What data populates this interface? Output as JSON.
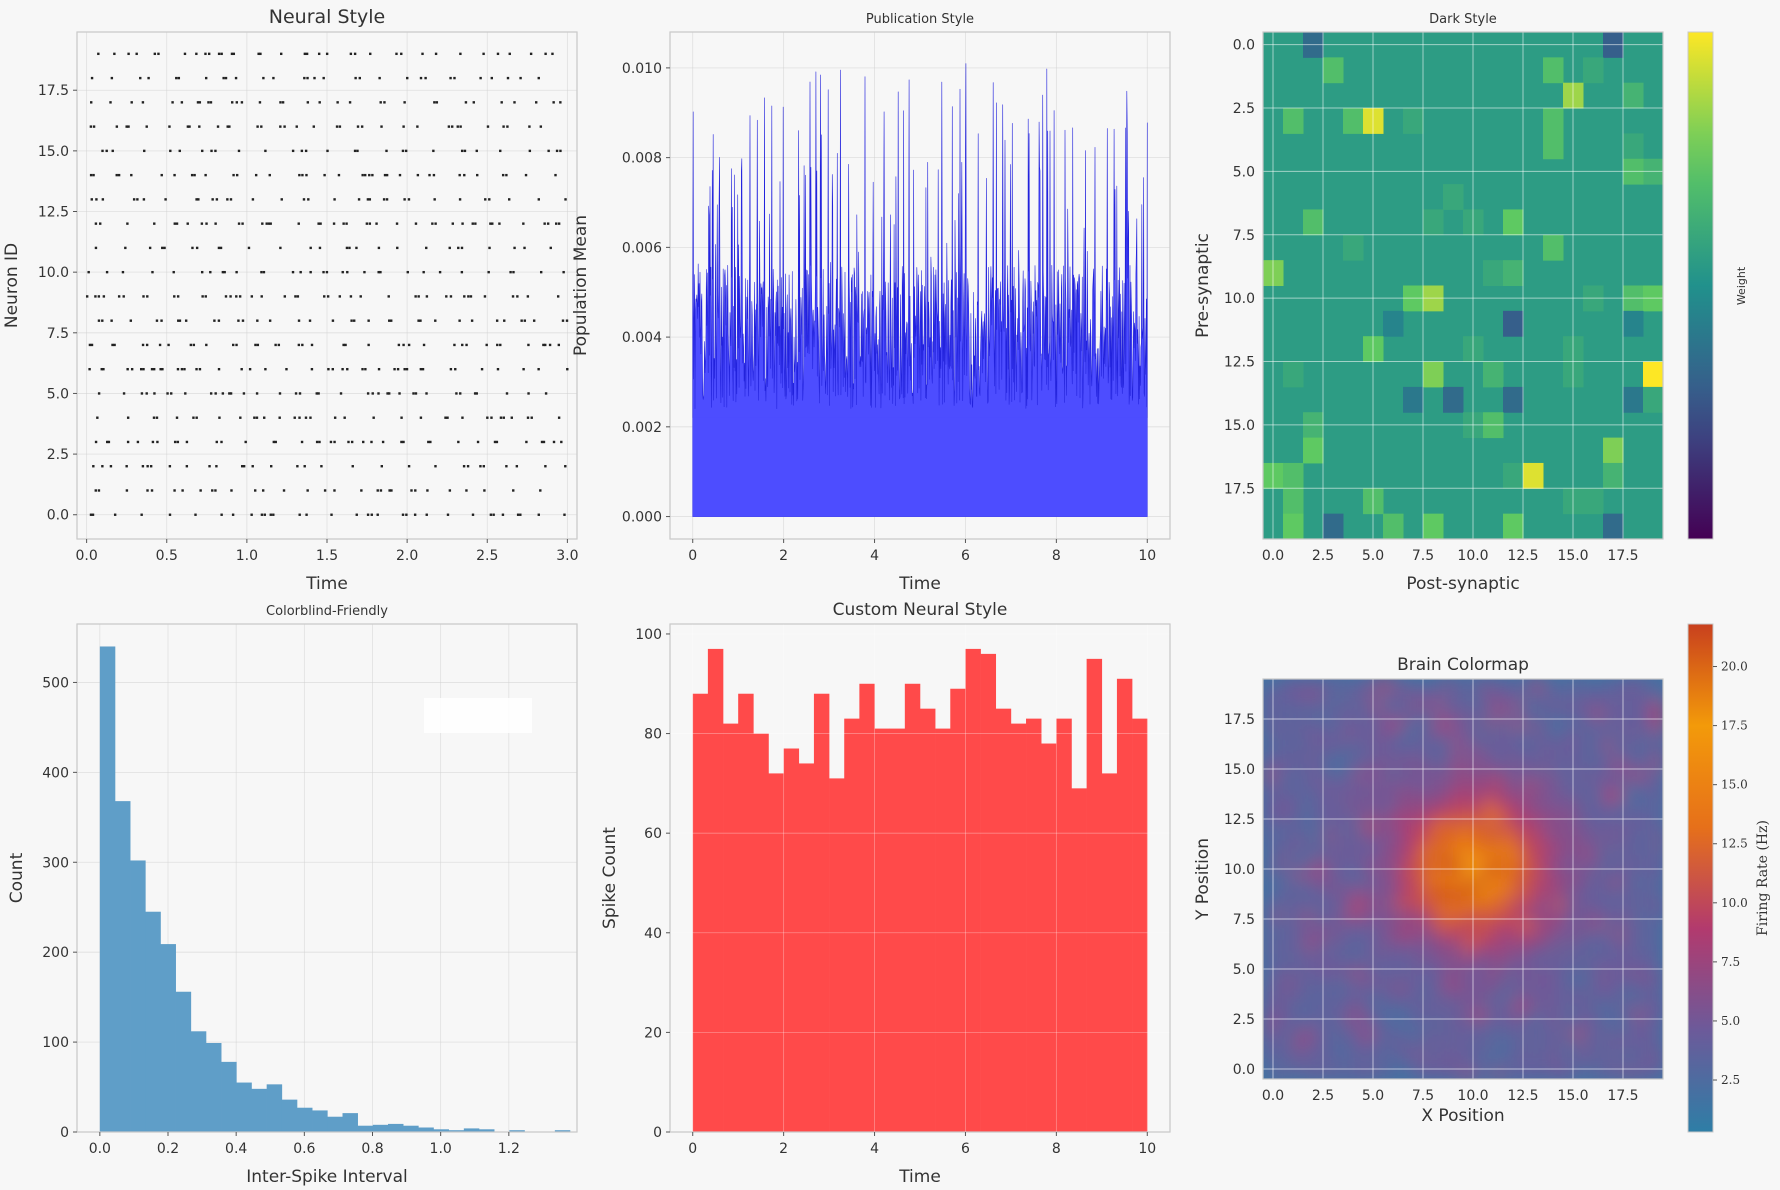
{
  "chart_data": [
    {
      "id": "raster",
      "type": "scatter",
      "title": "Neural Style",
      "xlabel": "Time",
      "ylabel": "Neuron ID",
      "xlim": [
        -0.06,
        3.06
      ],
      "ylim": [
        -1.0,
        19.9
      ],
      "xticks": [
        0.0,
        0.5,
        1.0,
        1.5,
        2.0,
        2.5,
        3.0
      ],
      "xticklabels": [
        "0.0",
        "0.5",
        "1.0",
        "1.5",
        "2.0",
        "2.5",
        "3.0"
      ],
      "yticks": [
        0.0,
        2.5,
        5.0,
        7.5,
        10.0,
        12.5,
        15.0,
        17.5
      ],
      "yticklabels": [
        "0.0",
        "2.5",
        "5.0",
        "7.5",
        "10.0",
        "12.5",
        "15.0",
        "17.5"
      ],
      "neurons": 20,
      "spike_count_approx": 600,
      "grid": true,
      "color": "#222222"
    },
    {
      "id": "population",
      "type": "area",
      "title": "Publication Style",
      "xlabel": "Time",
      "ylabel": "Population Mean",
      "xlim": [
        -0.5,
        10.5
      ],
      "ylim": [
        -0.0005,
        0.0108
      ],
      "xticks": [
        0,
        2,
        4,
        6,
        8,
        10
      ],
      "xticklabels": [
        "0",
        "2",
        "4",
        "6",
        "8",
        "10"
      ],
      "yticks": [
        0.0,
        0.002,
        0.004,
        0.006,
        0.008,
        0.01
      ],
      "yticklabels": [
        "0.000",
        "0.002",
        "0.004",
        "0.006",
        "0.008",
        "0.010"
      ],
      "baseline_mean": 0.004,
      "peak_max": 0.0103,
      "grid": true,
      "color": "#3a3af0"
    },
    {
      "id": "connectivity",
      "type": "heatmap",
      "title": "Dark Style",
      "xlabel": "Post-synaptic",
      "ylabel": "Pre-synaptic",
      "xticks": [
        0,
        2.5,
        5,
        7.5,
        10,
        12.5,
        15,
        17.5
      ],
      "xticklabels": [
        "0.0",
        "2.5",
        "5.0",
        "7.5",
        "10.0",
        "12.5",
        "15.0",
        "17.5"
      ],
      "yticks": [
        0,
        2.5,
        5,
        7.5,
        10,
        12.5,
        15,
        17.5
      ],
      "yticklabels": [
        "0.0",
        "2.5",
        "5.0",
        "7.5",
        "10.0",
        "12.5",
        "15.0",
        "17.5"
      ],
      "colormap": "viridis",
      "background_value": 0.55,
      "colorbar_label": "Weight",
      "cells": [
        [
          0,
          2,
          0.35
        ],
        [
          0,
          17,
          0.3
        ],
        [
          1,
          3,
          0.7
        ],
        [
          1,
          14,
          0.7
        ],
        [
          1,
          16,
          0.6
        ],
        [
          2,
          15,
          0.85
        ],
        [
          2,
          18,
          0.65
        ],
        [
          3,
          1,
          0.7
        ],
        [
          3,
          4,
          0.7
        ],
        [
          3,
          5,
          0.95
        ],
        [
          3,
          7,
          0.6
        ],
        [
          3,
          14,
          0.7
        ],
        [
          4,
          14,
          0.7
        ],
        [
          4,
          18,
          0.6
        ],
        [
          5,
          19,
          0.65
        ],
        [
          5,
          18,
          0.7
        ],
        [
          6,
          9,
          0.6
        ],
        [
          7,
          2,
          0.7
        ],
        [
          7,
          8,
          0.6
        ],
        [
          7,
          10,
          0.6
        ],
        [
          7,
          12,
          0.75
        ],
        [
          8,
          14,
          0.7
        ],
        [
          8,
          4,
          0.6
        ],
        [
          9,
          0,
          0.8
        ],
        [
          9,
          11,
          0.6
        ],
        [
          9,
          12,
          0.65
        ],
        [
          10,
          7,
          0.75
        ],
        [
          10,
          8,
          0.85
        ],
        [
          10,
          16,
          0.6
        ],
        [
          10,
          18,
          0.7
        ],
        [
          10,
          19,
          0.75
        ],
        [
          11,
          6,
          0.45
        ],
        [
          11,
          12,
          0.3
        ],
        [
          11,
          18,
          0.45
        ],
        [
          12,
          5,
          0.75
        ],
        [
          12,
          10,
          0.6
        ],
        [
          12,
          15,
          0.6
        ],
        [
          13,
          1,
          0.6
        ],
        [
          13,
          8,
          0.8
        ],
        [
          13,
          11,
          0.65
        ],
        [
          13,
          15,
          0.6
        ],
        [
          13,
          19,
          1.0
        ],
        [
          14,
          7,
          0.4
        ],
        [
          14,
          9,
          0.35
        ],
        [
          14,
          12,
          0.35
        ],
        [
          14,
          18,
          0.4
        ],
        [
          14,
          19,
          0.6
        ],
        [
          15,
          2,
          0.65
        ],
        [
          15,
          10,
          0.6
        ],
        [
          15,
          11,
          0.7
        ],
        [
          16,
          2,
          0.75
        ],
        [
          16,
          17,
          0.8
        ],
        [
          17,
          0,
          0.75
        ],
        [
          17,
          1,
          0.7
        ],
        [
          17,
          12,
          0.6
        ],
        [
          17,
          13,
          0.95
        ],
        [
          17,
          17,
          0.65
        ],
        [
          18,
          1,
          0.7
        ],
        [
          18,
          5,
          0.7
        ],
        [
          18,
          15,
          0.6
        ],
        [
          18,
          16,
          0.6
        ],
        [
          19,
          1,
          0.75
        ],
        [
          19,
          6,
          0.7
        ],
        [
          19,
          8,
          0.75
        ],
        [
          19,
          12,
          0.75
        ],
        [
          19,
          3,
          0.35
        ],
        [
          19,
          17,
          0.35
        ]
      ]
    },
    {
      "id": "isi",
      "type": "bar",
      "title": "Colorblind-Friendly",
      "xlabel": "Inter-Spike Interval",
      "ylabel": "Count",
      "xlim": [
        -0.067,
        1.4
      ],
      "ylim": [
        0,
        565
      ],
      "xticks": [
        0.0,
        0.2,
        0.4,
        0.6,
        0.8,
        1.0,
        1.2
      ],
      "xticklabels": [
        "0.0",
        "0.2",
        "0.4",
        "0.6",
        "0.8",
        "1.0",
        "1.2"
      ],
      "yticks": [
        0,
        100,
        200,
        300,
        400,
        500
      ],
      "yticklabels": [
        "0",
        "100",
        "200",
        "300",
        "400",
        "500"
      ],
      "bin_width": 0.0445,
      "bin_start": 0.0,
      "values": [
        540,
        368,
        302,
        245,
        209,
        156,
        112,
        99,
        78,
        55,
        48,
        53,
        36,
        27,
        24,
        17,
        21,
        7,
        8,
        9,
        7,
        5,
        3,
        2,
        4,
        3,
        0,
        2,
        0,
        0,
        2
      ],
      "grid": true,
      "color": "#5f9ec8"
    },
    {
      "id": "spike_counts",
      "type": "bar",
      "title": "Custom Neural Style",
      "xlabel": "Time",
      "ylabel": "Spike Count",
      "xlim": [
        -0.5,
        10.5
      ],
      "ylim": [
        0,
        102
      ],
      "xticks": [
        0,
        2,
        4,
        6,
        8,
        10
      ],
      "xticklabels": [
        "0",
        "2",
        "4",
        "6",
        "8",
        "10"
      ],
      "yticks": [
        0,
        20,
        40,
        60,
        80,
        100
      ],
      "yticklabels": [
        "0",
        "20",
        "40",
        "60",
        "80",
        "100"
      ],
      "bin_width": 0.3333,
      "values": [
        88,
        97,
        82,
        88,
        80,
        72,
        77,
        74,
        88,
        71,
        83,
        90,
        81,
        81,
        90,
        85,
        81,
        89,
        97,
        96,
        85,
        82,
        83,
        78,
        83,
        69,
        95,
        72,
        91,
        83
      ],
      "grid": true,
      "color": "#ff4a4a"
    },
    {
      "id": "brain_map",
      "type": "heatmap",
      "title": "Brain Colormap",
      "xlabel": "X Position",
      "ylabel": "Y Position",
      "xticks": [
        0,
        2.5,
        5,
        7.5,
        10,
        12.5,
        15,
        17.5
      ],
      "xticklabels": [
        "0.0",
        "2.5",
        "5.0",
        "7.5",
        "10.0",
        "12.5",
        "15.0",
        "17.5"
      ],
      "yticks": [
        0,
        2.5,
        5,
        7.5,
        10,
        12.5,
        15,
        17.5
      ],
      "yticklabels": [
        "0.0",
        "2.5",
        "5.0",
        "7.5",
        "10.0",
        "12.5",
        "15.0",
        "17.5"
      ],
      "colorbar_label": "Firing Rate (Hz)",
      "colorbar_ticks": [
        2.5,
        5.0,
        7.5,
        10.0,
        12.5,
        15.0,
        17.5,
        20.0
      ],
      "colorbar_ticklabels": [
        "2.5",
        "5.0",
        "7.5",
        "10.0",
        "12.5",
        "15.0",
        "17.5",
        "20.0"
      ],
      "colorbar_range": [
        0.3,
        21.8
      ],
      "colors": [
        "#2e7ea6",
        "#6c5a9a",
        "#b23a6e",
        "#e6701a",
        "#f39a0a",
        "#c8401e"
      ],
      "center": [
        10.0,
        10.0
      ],
      "peak_rate": 21.5
    }
  ]
}
